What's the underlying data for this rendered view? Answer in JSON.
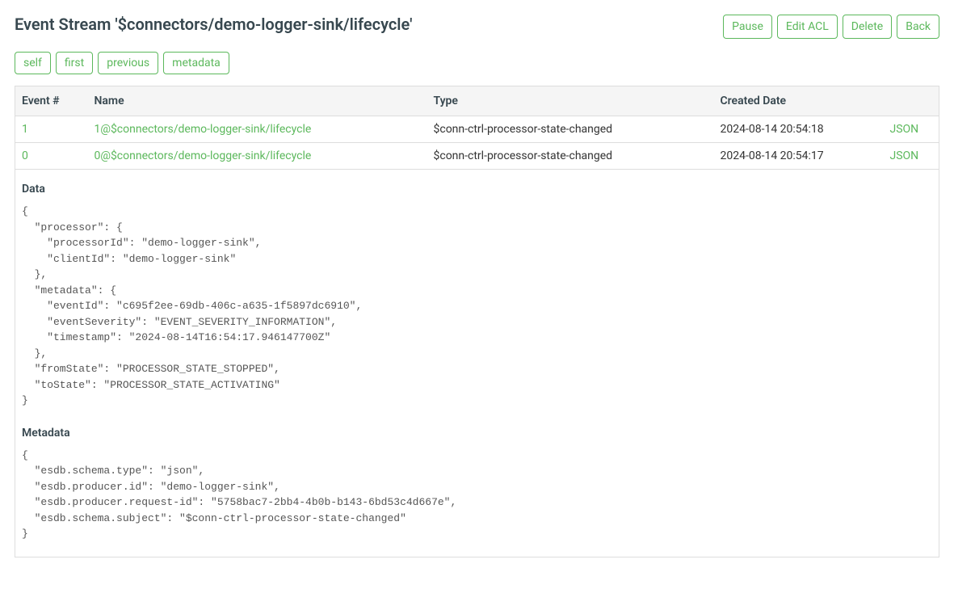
{
  "header": {
    "title": "Event Stream '$connectors/demo-logger-sink/lifecycle'"
  },
  "actions": {
    "pause": "Pause",
    "editAcl": "Edit ACL",
    "delete": "Delete",
    "back": "Back"
  },
  "navPills": {
    "self": "self",
    "first": "first",
    "previous": "previous",
    "metadata": "metadata"
  },
  "table": {
    "headers": {
      "eventNum": "Event #",
      "name": "Name",
      "type": "Type",
      "createdDate": "Created Date"
    },
    "rows": [
      {
        "eventNum": "1",
        "name": "1@$connectors/demo-logger-sink/lifecycle",
        "type": "$conn-ctrl-processor-state-changed",
        "createdDate": "2024-08-14 20:54:18",
        "jsonLabel": "JSON"
      },
      {
        "eventNum": "0",
        "name": "0@$connectors/demo-logger-sink/lifecycle",
        "type": "$conn-ctrl-processor-state-changed",
        "createdDate": "2024-08-14 20:54:17",
        "jsonLabel": "JSON"
      }
    ]
  },
  "detail": {
    "dataHeading": "Data",
    "dataBody": "{\n  \"processor\": {\n    \"processorId\": \"demo-logger-sink\",\n    \"clientId\": \"demo-logger-sink\"\n  },\n  \"metadata\": {\n    \"eventId\": \"c695f2ee-69db-406c-a635-1f5897dc6910\",\n    \"eventSeverity\": \"EVENT_SEVERITY_INFORMATION\",\n    \"timestamp\": \"2024-08-14T16:54:17.946147700Z\"\n  },\n  \"fromState\": \"PROCESSOR_STATE_STOPPED\",\n  \"toState\": \"PROCESSOR_STATE_ACTIVATING\"\n}",
    "metadataHeading": "Metadata",
    "metadataBody": "{\n  \"esdb.schema.type\": \"json\",\n  \"esdb.producer.id\": \"demo-logger-sink\",\n  \"esdb.producer.request-id\": \"5758bac7-2bb4-4b0b-b143-6bd53c4d667e\",\n  \"esdb.schema.subject\": \"$conn-ctrl-processor-state-changed\"\n}"
  },
  "colors": {
    "accent": "#5cb85c",
    "headerBg": "#f5f5f5",
    "border": "#dddddd",
    "titleText": "#37474f",
    "bodyText": "#333333",
    "codeText": "#555555"
  }
}
